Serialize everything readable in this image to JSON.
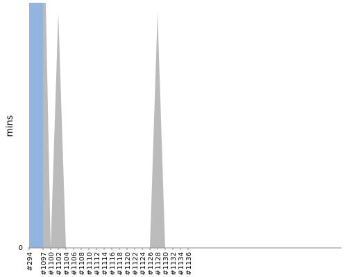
{
  "chart_data": {
    "type": "area",
    "ylabel": "mins",
    "yticks": [
      "0"
    ],
    "ylim": [
      0,
      1
    ],
    "x_labels": [
      "#294",
      "#1097",
      "#1100",
      "#1102",
      "#1104",
      "#1106",
      "#1108",
      "#1110",
      "#1112",
      "#1114",
      "#1116",
      "#1118",
      "#1120",
      "#1122",
      "#1124",
      "#1126",
      "#1128",
      "#1130",
      "#1132",
      "#1134",
      "#1136"
    ],
    "series": [
      {
        "color": "#93b4e0",
        "points": [
          {
            "x": "#294",
            "y": 1
          },
          {
            "x": "#1097",
            "y": 0
          }
        ]
      },
      {
        "color": "#bbbbbb",
        "points": [
          {
            "x": "#1097",
            "y": 1
          },
          {
            "x": "#1100",
            "y": 0
          },
          {
            "x": "#1102",
            "y": 0.96
          },
          {
            "x": "#1104",
            "y": 0
          },
          {
            "x": "#1126",
            "y": 0
          },
          {
            "x": "#1128",
            "y": 0.96
          },
          {
            "x": "#1130",
            "y": 0
          }
        ]
      }
    ],
    "grid": false,
    "legend": "none"
  }
}
